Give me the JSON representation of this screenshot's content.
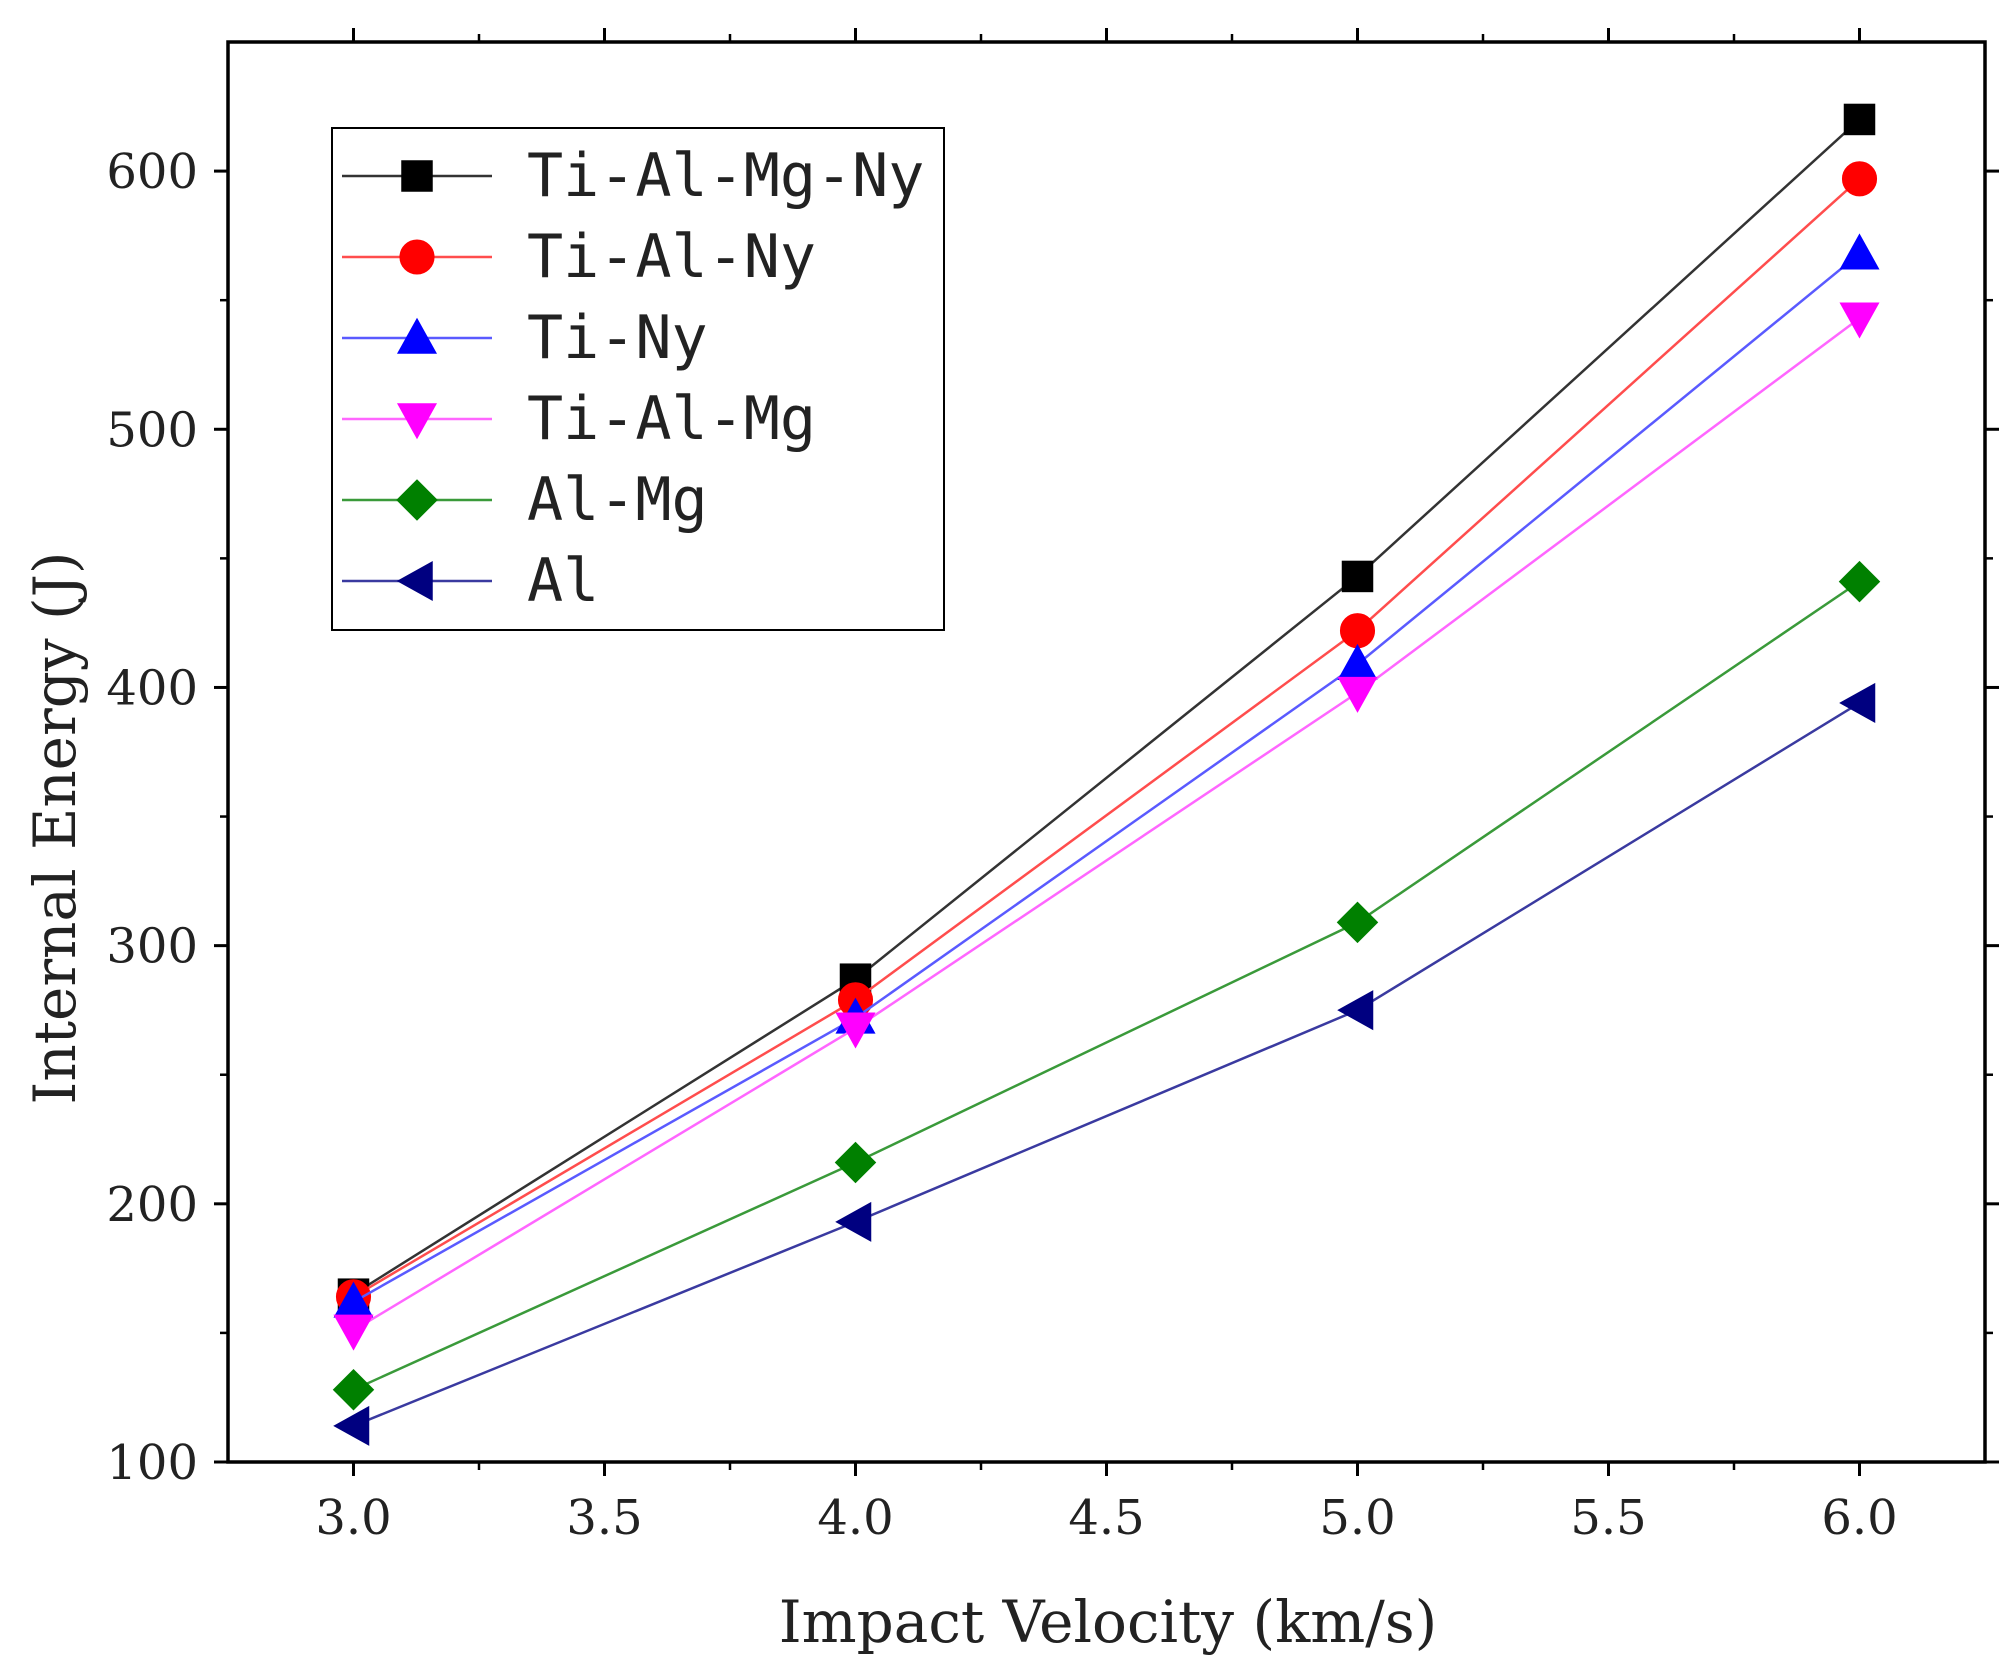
{
  "chart_data": {
    "type": "line",
    "title": "",
    "xlabel": "Impact Velocity (km/s)",
    "ylabel": "Internal Energy (J)",
    "xlim": [
      2.75,
      6.25
    ],
    "ylim": [
      100,
      650
    ],
    "x": [
      3.0,
      4.0,
      5.0,
      6.0
    ],
    "x_ticks": [
      3.0,
      3.5,
      4.0,
      4.5,
      5.0,
      5.5,
      6.0
    ],
    "x_tick_labels": [
      "3.0",
      "3.5",
      "4.0",
      "4.5",
      "5.0",
      "5.5",
      "6.0"
    ],
    "y_ticks": [
      100,
      200,
      300,
      400,
      500,
      600
    ],
    "y_tick_labels": [
      "100",
      "200",
      "300",
      "400",
      "500",
      "600"
    ],
    "grid": false,
    "legend_position": "top-left",
    "series": [
      {
        "name": "Ti-Al-Mg-Ny",
        "marker": "square",
        "line_color": "#333333",
        "marker_color": "#000000",
        "values": [
          165,
          287,
          443,
          620
        ]
      },
      {
        "name": "Ti-Al-Ny",
        "marker": "circle",
        "line_color": "#ff4d4d",
        "marker_color": "#ff0000",
        "values": [
          164,
          279,
          422,
          597
        ]
      },
      {
        "name": "Ti-Ny",
        "marker": "triangle-up",
        "line_color": "#5a5aff",
        "marker_color": "#0000ff",
        "values": [
          162,
          272,
          409,
          568
        ]
      },
      {
        "name": "Ti-Al-Mg",
        "marker": "triangle-down",
        "line_color": "#ff66ff",
        "marker_color": "#ff00ff",
        "values": [
          151,
          268,
          398,
          543
        ]
      },
      {
        "name": "Al-Mg",
        "marker": "diamond",
        "line_color": "#3a9a3a",
        "marker_color": "#008000",
        "values": [
          128,
          216,
          309,
          441
        ]
      },
      {
        "name": "Al",
        "marker": "triangle-left",
        "line_color": "#3a3aa0",
        "marker_color": "#000080",
        "values": [
          114,
          193,
          275,
          394
        ]
      }
    ]
  }
}
